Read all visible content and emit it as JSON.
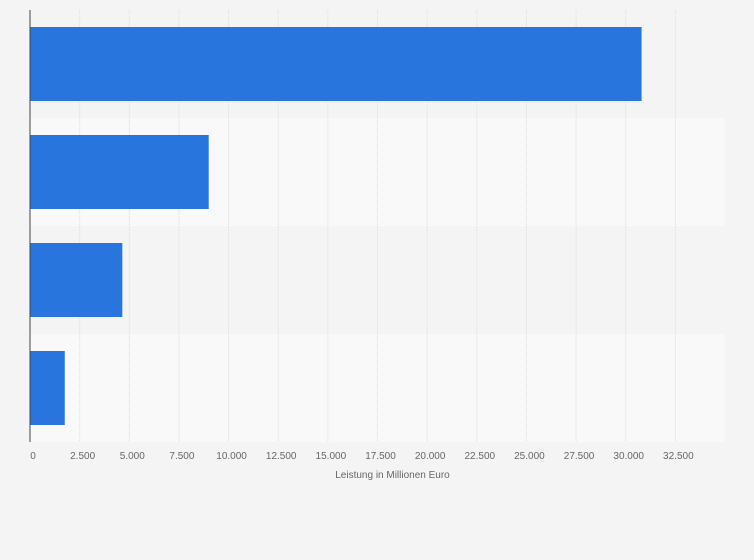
{
  "chart_data": {
    "type": "bar",
    "orientation": "horizontal",
    "categories": [
      "",
      "",
      "",
      ""
    ],
    "values": [
      30800,
      9000,
      4650,
      1750
    ],
    "xlabel": "Leistung in Millionen Euro",
    "ylabel": "",
    "xlim": [
      0,
      35000
    ],
    "xticks": [
      0,
      2500,
      5000,
      7500,
      10000,
      12500,
      15000,
      17500,
      20000,
      22500,
      25000,
      27500,
      30000,
      32500
    ],
    "xtick_labels": [
      "0",
      "2.500",
      "5.000",
      "7.500",
      "10.000",
      "12.500",
      "15.000",
      "17.500",
      "20.000",
      "22.500",
      "25.000",
      "27.500",
      "30.000",
      "32.500"
    ],
    "grid": true,
    "legend": "none",
    "colors": {
      "bar": "#2876dd",
      "band_odd": "#f4f4f4",
      "band_even": "#f9f9f9",
      "background": "#f4f4f4",
      "grid": "#dddddd",
      "axis": "#444444"
    }
  }
}
